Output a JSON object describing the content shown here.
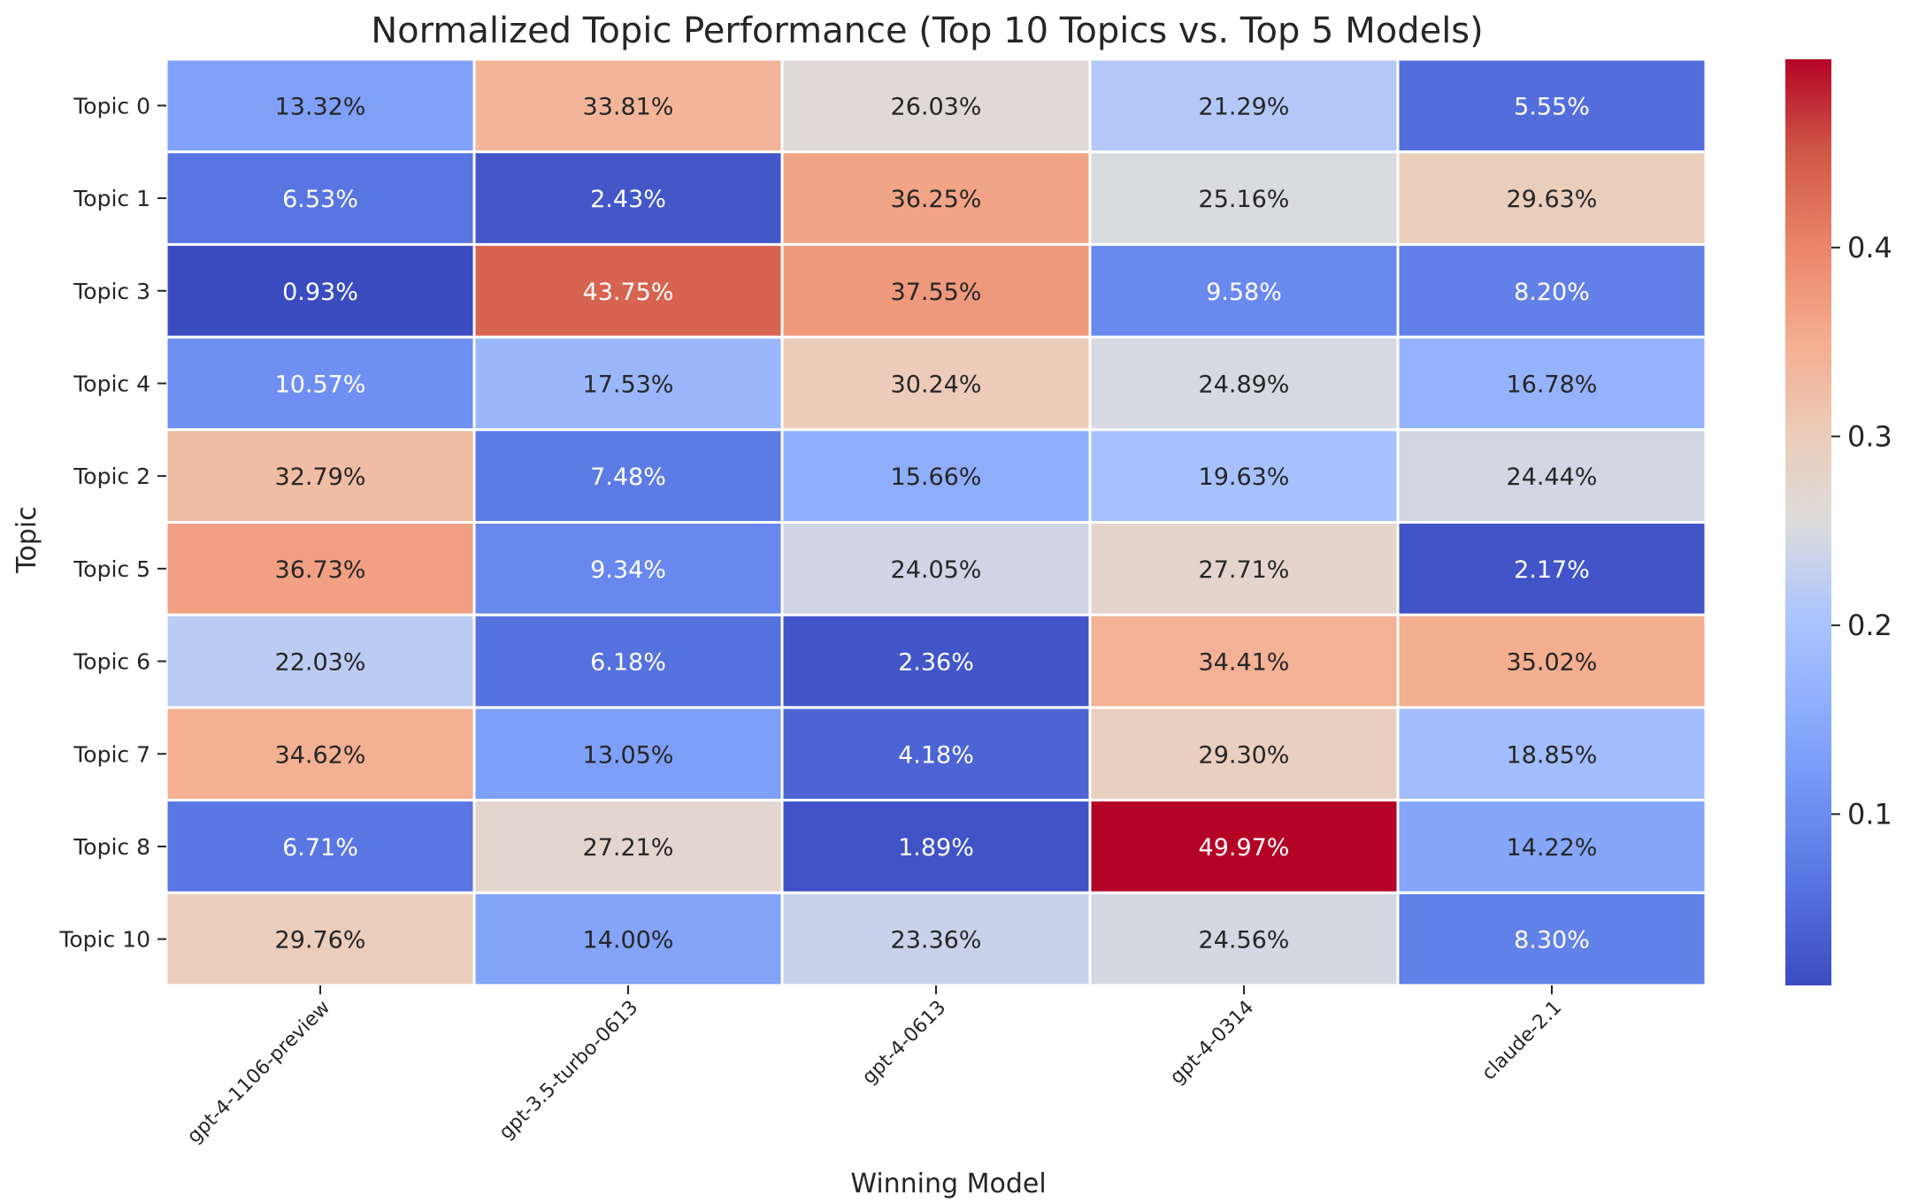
{
  "chart_data": {
    "type": "heatmap",
    "title": "Normalized Topic Performance (Top 10 Topics vs. Top 5 Models)",
    "xlabel": "Winning Model",
    "ylabel": "Topic",
    "columns": [
      "gpt-4-1106-preview",
      "gpt-3.5-turbo-0613",
      "gpt-4-0613",
      "gpt-4-0314",
      "claude-2.1"
    ],
    "rows": [
      "Topic 0",
      "Topic 1",
      "Topic 3",
      "Topic 4",
      "Topic 2",
      "Topic 5",
      "Topic 6",
      "Topic 7",
      "Topic 8",
      "Topic 10"
    ],
    "values": [
      [
        0.1332,
        0.3381,
        0.2603,
        0.2129,
        0.0555
      ],
      [
        0.0653,
        0.0243,
        0.3625,
        0.2516,
        0.2963
      ],
      [
        0.0093,
        0.4375,
        0.3755,
        0.0958,
        0.082
      ],
      [
        0.1057,
        0.1753,
        0.3024,
        0.2489,
        0.1678
      ],
      [
        0.3279,
        0.0748,
        0.1566,
        0.1963,
        0.2444
      ],
      [
        0.3673,
        0.0934,
        0.2405,
        0.2771,
        0.0217
      ],
      [
        0.2203,
        0.0618,
        0.0236,
        0.3441,
        0.3502
      ],
      [
        0.3462,
        0.1305,
        0.0418,
        0.293,
        0.1885
      ],
      [
        0.0671,
        0.2721,
        0.0189,
        0.4997,
        0.1422
      ],
      [
        0.2976,
        0.14,
        0.2336,
        0.2456,
        0.083
      ]
    ],
    "labels": [
      [
        "13.32%",
        "33.81%",
        "26.03%",
        "21.29%",
        "5.55%"
      ],
      [
        "6.53%",
        "2.43%",
        "36.25%",
        "25.16%",
        "29.63%"
      ],
      [
        "0.93%",
        "43.75%",
        "37.55%",
        "9.58%",
        "8.20%"
      ],
      [
        "10.57%",
        "17.53%",
        "30.24%",
        "24.89%",
        "16.78%"
      ],
      [
        "32.79%",
        "7.48%",
        "15.66%",
        "19.63%",
        "24.44%"
      ],
      [
        "36.73%",
        "9.34%",
        "24.05%",
        "27.71%",
        "2.17%"
      ],
      [
        "22.03%",
        "6.18%",
        "2.36%",
        "34.41%",
        "35.02%"
      ],
      [
        "34.62%",
        "13.05%",
        "4.18%",
        "29.30%",
        "18.85%"
      ],
      [
        "6.71%",
        "27.21%",
        "1.89%",
        "49.97%",
        "14.22%"
      ],
      [
        "29.76%",
        "14.00%",
        "23.36%",
        "24.56%",
        "8.30%"
      ]
    ],
    "colormap": "coolwarm",
    "colorbar": {
      "range": [
        0.0093,
        0.4997
      ],
      "ticks": [
        0.1,
        0.2,
        0.3,
        0.4
      ],
      "tick_labels": [
        "0.1",
        "0.2",
        "0.3",
        "0.4"
      ]
    }
  }
}
